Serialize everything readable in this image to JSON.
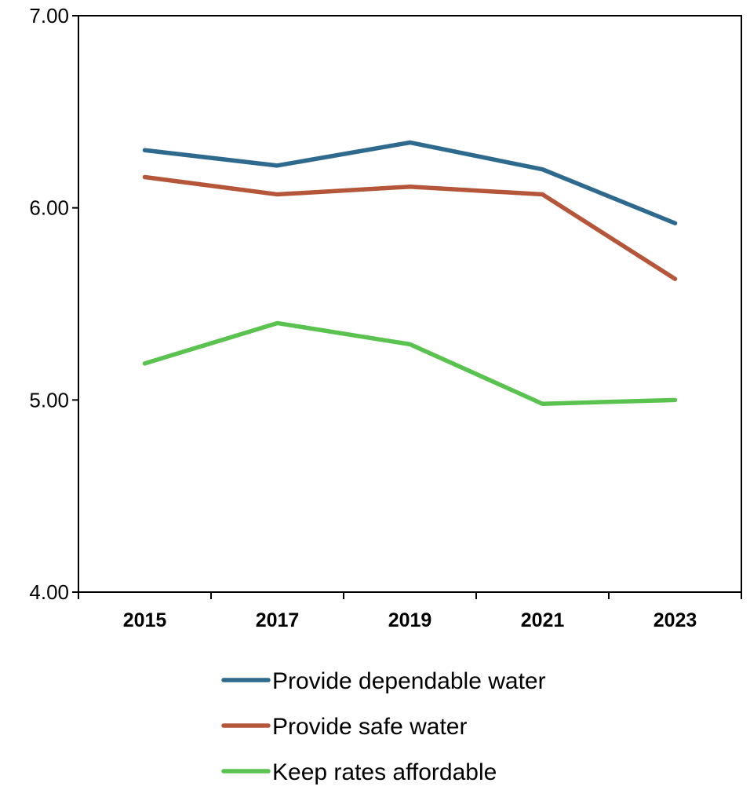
{
  "chart_data": {
    "type": "line",
    "title": "",
    "xlabel": "",
    "ylabel": "",
    "x": [
      "2015",
      "2017",
      "2019",
      "2021",
      "2023"
    ],
    "ylim": [
      4.0,
      7.0
    ],
    "yticks": [
      "4.00",
      "5.00",
      "6.00",
      "7.00"
    ],
    "grid": false,
    "legend_position": "bottom",
    "series": [
      {
        "name": "Provide dependable water",
        "color": "#2E6A8E",
        "values": [
          6.3,
          6.22,
          6.34,
          6.2,
          5.92
        ]
      },
      {
        "name": "Provide safe water",
        "color": "#B5553A",
        "values": [
          6.16,
          6.07,
          6.11,
          6.07,
          5.63
        ]
      },
      {
        "name": "Keep rates affordable",
        "color": "#5AC24E",
        "values": [
          5.19,
          5.4,
          5.29,
          4.98,
          5.0
        ]
      }
    ]
  }
}
